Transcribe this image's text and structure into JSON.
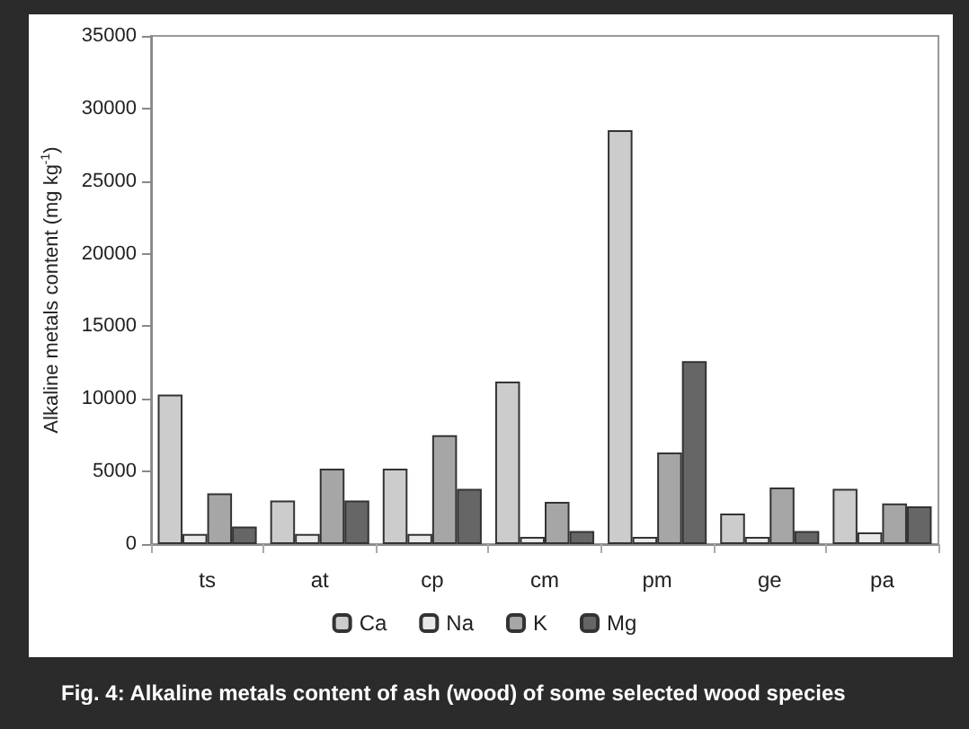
{
  "chart_data": {
    "type": "bar",
    "ylabel": "Alkaline metals content (mg kg$^{-1}$)",
    "annotations": [
      "Fig. 4: Alkaline metals content of ash (wood) of some selected wood species"
    ],
    "categories": [
      "ts",
      "at",
      "cp",
      "cm",
      "pm",
      "ge",
      "pa"
    ],
    "series": [
      {
        "name": "Ca",
        "color": "#cccccc",
        "values": [
          10300,
          3000,
          5200,
          11200,
          28500,
          2100,
          3800
        ]
      },
      {
        "name": "Na",
        "color": "#e8e8e8",
        "values": [
          700,
          700,
          700,
          500,
          500,
          500,
          800
        ]
      },
      {
        "name": "K",
        "color": "#a6a6a6",
        "values": [
          3500,
          5200,
          7500,
          2900,
          6300,
          3900,
          2800
        ]
      },
      {
        "name": "Mg",
        "color": "#666666",
        "values": [
          1200,
          3000,
          3800,
          900,
          12600,
          900,
          2600
        ]
      }
    ],
    "ylim": [
      0,
      35000
    ],
    "yticks": [
      0,
      5000,
      10000,
      15000,
      20000,
      25000,
      30000,
      35000
    ],
    "grid": false,
    "legend": "bottom"
  }
}
